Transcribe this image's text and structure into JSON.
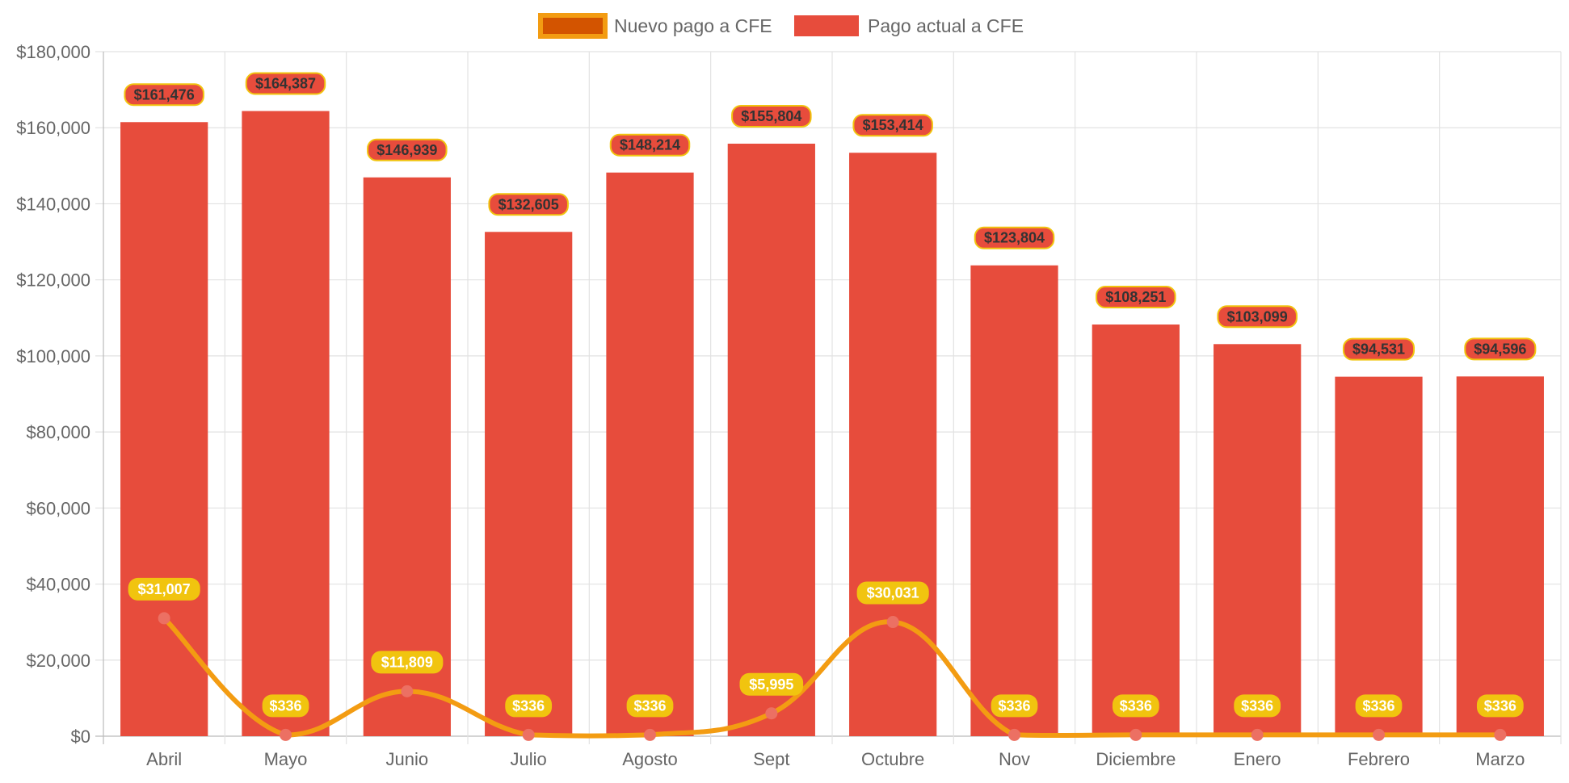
{
  "chart_data": {
    "type": "bar",
    "title": "",
    "xlabel": "",
    "ylabel": "",
    "categories": [
      "Abril",
      "Mayo",
      "Junio",
      "Julio",
      "Agosto",
      "Sept",
      "Octubre",
      "Nov",
      "Diciembre",
      "Enero",
      "Febrero",
      "Marzo"
    ],
    "ylim": [
      0,
      180000
    ],
    "y_ticks": [
      {
        "value": 0,
        "label": "$0"
      },
      {
        "value": 20000,
        "label": "$20,000"
      },
      {
        "value": 40000,
        "label": "$40,000"
      },
      {
        "value": 60000,
        "label": "$60,000"
      },
      {
        "value": 80000,
        "label": "$80,000"
      },
      {
        "value": 100000,
        "label": "$100,000"
      },
      {
        "value": 120000,
        "label": "$120,000"
      },
      {
        "value": 140000,
        "label": "$140,000"
      },
      {
        "value": 160000,
        "label": "$160,000"
      },
      {
        "value": 180000,
        "label": "$180,000"
      }
    ],
    "grid": true,
    "legend_position": "top-center",
    "series": [
      {
        "name": "Nuevo pago a CFE",
        "type": "line",
        "color": "#f39c12",
        "fill_color": "#d35400",
        "point_color": "#ec7063",
        "label_bg": "#f1c40f",
        "values": [
          31007,
          336,
          11809,
          336,
          336,
          5995,
          30031,
          336,
          336,
          336,
          336,
          336
        ],
        "labels": [
          "$31,007",
          "$336",
          "$11,809",
          "$336",
          "$336",
          "$5,995",
          "$30,031",
          "$336",
          "$336",
          "$336",
          "$336",
          "$336"
        ]
      },
      {
        "name": "Pago actual a CFE",
        "type": "bar",
        "color": "#e74c3c",
        "label_bg": "#e74c3c",
        "label_border": "#f1c40f",
        "values": [
          161476,
          164387,
          146939,
          132605,
          148214,
          155804,
          153414,
          123804,
          108251,
          103099,
          94531,
          94596
        ],
        "labels": [
          "$161,476",
          "$164,387",
          "$146,939",
          "$132,605",
          "$148,214",
          "$155,804",
          "$153,414",
          "$123,804",
          "$108,251",
          "$103,099",
          "$94,531",
          "$94,596"
        ]
      }
    ]
  }
}
